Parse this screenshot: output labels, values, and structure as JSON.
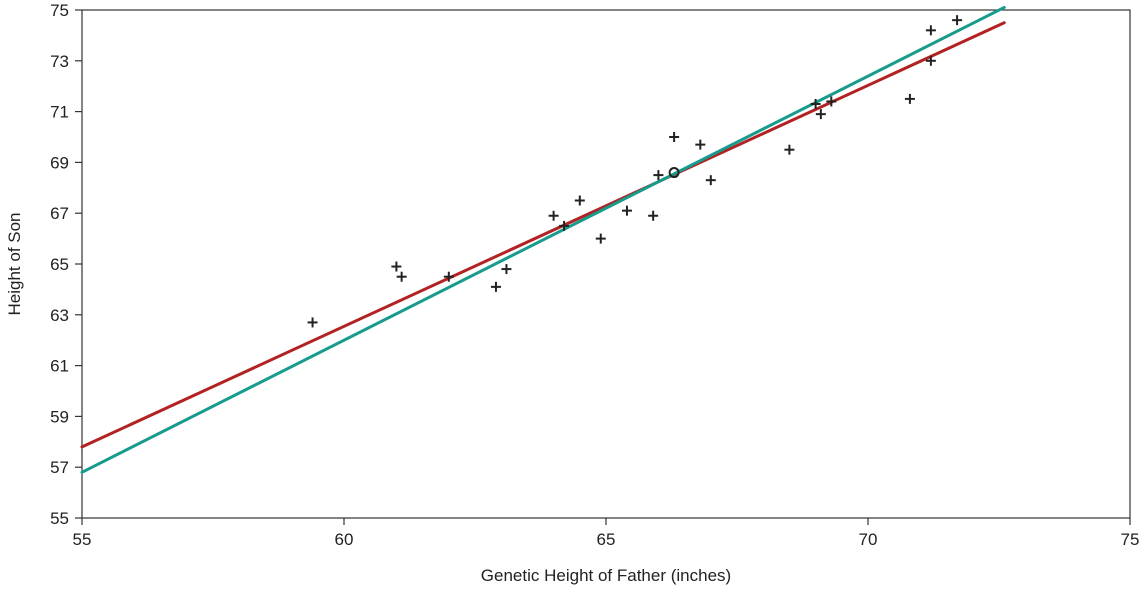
{
  "chart_data": {
    "type": "scatter",
    "title": "",
    "xlabel": "Genetic Height of Father (inches)",
    "ylabel": "Height of Son",
    "xlim": [
      55,
      75
    ],
    "ylim": [
      55,
      75
    ],
    "xticks": [
      55,
      60,
      65,
      70,
      75
    ],
    "yticks": [
      55,
      57,
      59,
      61,
      63,
      65,
      67,
      69,
      71,
      73,
      75
    ],
    "grid": false,
    "legend": "none",
    "points": [
      {
        "x": 59.4,
        "y": 62.7
      },
      {
        "x": 61.0,
        "y": 64.9
      },
      {
        "x": 61.1,
        "y": 64.5
      },
      {
        "x": 62.0,
        "y": 64.5
      },
      {
        "x": 62.9,
        "y": 64.1
      },
      {
        "x": 63.1,
        "y": 64.8
      },
      {
        "x": 64.0,
        "y": 66.9
      },
      {
        "x": 64.2,
        "y": 66.5
      },
      {
        "x": 64.5,
        "y": 67.5
      },
      {
        "x": 64.9,
        "y": 66.0
      },
      {
        "x": 65.4,
        "y": 67.1
      },
      {
        "x": 65.9,
        "y": 66.9
      },
      {
        "x": 66.0,
        "y": 68.5
      },
      {
        "x": 66.3,
        "y": 70.0
      },
      {
        "x": 66.8,
        "y": 69.7
      },
      {
        "x": 67.0,
        "y": 68.3
      },
      {
        "x": 68.5,
        "y": 69.5
      },
      {
        "x": 69.0,
        "y": 71.3
      },
      {
        "x": 69.1,
        "y": 70.9
      },
      {
        "x": 69.3,
        "y": 71.4
      },
      {
        "x": 70.8,
        "y": 71.5
      },
      {
        "x": 71.2,
        "y": 74.2
      },
      {
        "x": 71.2,
        "y": 73.0
      },
      {
        "x": 71.7,
        "y": 74.6
      }
    ],
    "mean_point": {
      "x": 66.3,
      "y": 68.6
    },
    "series": [
      {
        "color": "#b22222",
        "values": [
          [
            55,
            57.8
          ],
          [
            72.6,
            74.5
          ]
        ]
      },
      {
        "color": "#169b8c",
        "values": [
          [
            55,
            56.8
          ],
          [
            72.6,
            75.1
          ]
        ]
      }
    ],
    "colors": {
      "axis": "#333333",
      "points": "#222222"
    }
  }
}
